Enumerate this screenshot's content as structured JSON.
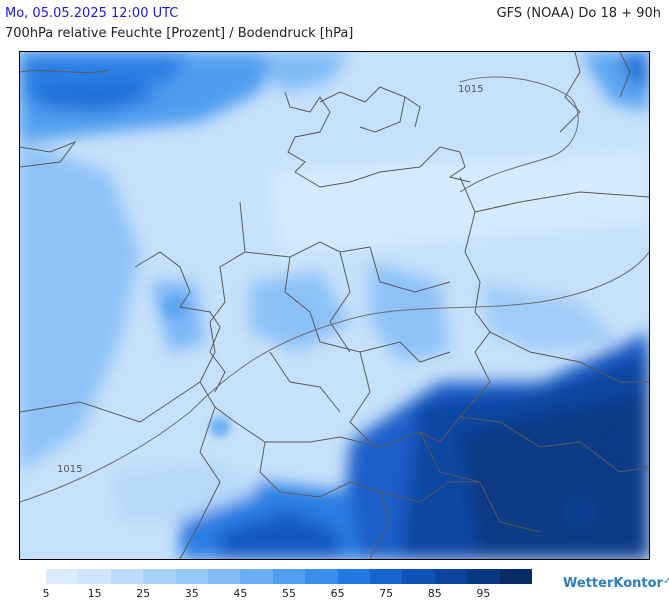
{
  "header": {
    "datetime": "Mo, 05.05.2025 12:00 UTC",
    "model": "GFS (NOAA) Do 18 + 90h",
    "parameter": "700hPa relative Feuchte [Prozent] / Bodendruck [hPa]"
  },
  "isobars": [
    {
      "label": "1015"
    },
    {
      "label": "1015"
    }
  ],
  "legend": {
    "colors": [
      "#dcecfc",
      "#cde4fb",
      "#bcdcfa",
      "#a9d2f9",
      "#96c8f8",
      "#82bcf6",
      "#6aaef3",
      "#519ef0",
      "#3a8eec",
      "#2179e3",
      "#1665cf",
      "#0f53b7",
      "#0b449c",
      "#093880",
      "#072c66"
    ],
    "labels": [
      "5",
      "15",
      "25",
      "35",
      "45",
      "55",
      "65",
      "75",
      "85",
      "95"
    ]
  },
  "brand": {
    "name": "WetterKontor",
    "mark": "✓"
  }
}
